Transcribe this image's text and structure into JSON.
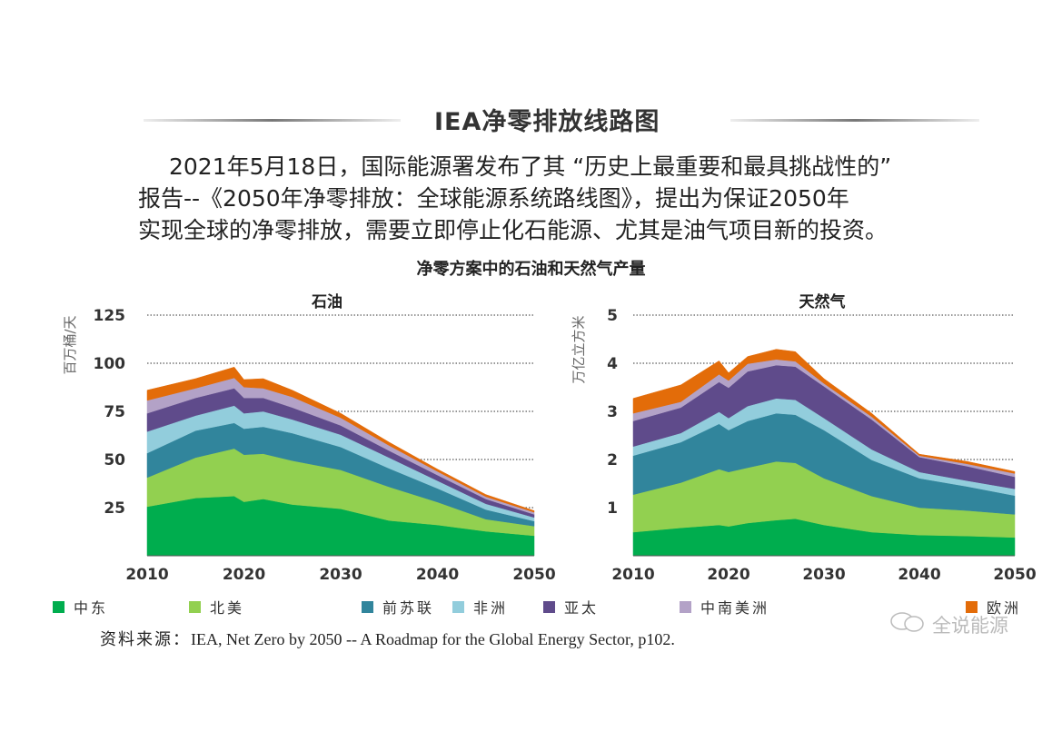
{
  "header": {
    "title": "IEA净零排放线路图"
  },
  "paragraph": {
    "lines": [
      "2021年5月18日，国际能源署发布了其 “历史上最重要和最具挑战性的”",
      "报告--《2050年净零排放：全球能源系统路线图》，提出为保证2050年",
      "实现全球的净零排放，需要立即停止化石能源、尤其是油气项目新的投资。"
    ]
  },
  "figure_title": "净零方案中的石油和天然气产量",
  "legend": [
    {
      "name": "中东",
      "color": "#00ad4e"
    },
    {
      "name": "北美",
      "color": "#92d050"
    },
    {
      "name": "前苏联",
      "color": "#31859c"
    },
    {
      "name": "非洲",
      "color": "#92cddc"
    },
    {
      "name": "亚太",
      "color": "#5f4b8b"
    },
    {
      "name": "中南美洲",
      "color": "#b3a2c7"
    },
    {
      "name": "欧洲",
      "color": "#e36c09"
    }
  ],
  "source": {
    "prefix": "资料来源：",
    "text": "IEA, Net Zero by 2050 -- A Roadmap for the Global Energy Sector, p102."
  },
  "watermark": "全说能源",
  "chart_data": [
    {
      "type": "area",
      "stacked": true,
      "title": "石油",
      "ylabel": "百万桶/天",
      "xlabel": "",
      "ylim": [
        0,
        125
      ],
      "yticks": [
        25,
        50,
        75,
        100,
        125
      ],
      "xlim": [
        2010,
        2050
      ],
      "xticks": [
        2010,
        2020,
        2030,
        2040,
        2050
      ],
      "grid": "horizontal dotted",
      "x": [
        2010,
        2015,
        2019,
        2020,
        2022,
        2025,
        2030,
        2035,
        2040,
        2045,
        2050
      ],
      "series": [
        {
          "name": "中东",
          "values": [
            25.5,
            30,
            31,
            28,
            29.5,
            26.6,
            24.4,
            18.3,
            16,
            12.7,
            10.4
          ]
        },
        {
          "name": "北美",
          "values": [
            15.1,
            21,
            24.7,
            24.5,
            23.5,
            22.8,
            20.2,
            17.5,
            11.9,
            6.3,
            5.0
          ]
        },
        {
          "name": "前苏联",
          "values": [
            12.7,
            14,
            13.3,
            13.5,
            14,
            14.3,
            11.9,
            9.6,
            7.1,
            5,
            2.6
          ]
        },
        {
          "name": "非洲",
          "values": [
            11.2,
            7.8,
            9,
            8,
            8,
            7.1,
            6.4,
            5.6,
            4,
            3,
            1.9
          ]
        },
        {
          "name": "亚太",
          "values": [
            9.5,
            9.2,
            9,
            8,
            7,
            6.2,
            4.8,
            3.6,
            2.9,
            2.5,
            1.6
          ]
        },
        {
          "name": "中南美洲",
          "values": [
            6.7,
            5,
            5.4,
            5.6,
            5,
            5.5,
            4,
            2.7,
            1.9,
            1.2,
            1.1
          ]
        },
        {
          "name": "欧洲",
          "values": [
            5.3,
            5,
            5.6,
            3.9,
            5,
            3.5,
            2.3,
            1.7,
            1.2,
            1.1,
            0.8
          ]
        }
      ]
    },
    {
      "type": "area",
      "stacked": true,
      "title": "天然气",
      "ylabel": "万亿立方米",
      "xlabel": "",
      "ylim": [
        0,
        5
      ],
      "yticks": [
        1,
        2,
        3,
        4,
        5
      ],
      "xlim": [
        2010,
        2050
      ],
      "xticks": [
        2010,
        2020,
        2030,
        2040,
        2050
      ],
      "grid": "horizontal dotted",
      "x": [
        2010,
        2015,
        2019,
        2020,
        2022,
        2025,
        2027,
        2030,
        2035,
        2040,
        2045,
        2050
      ],
      "series": [
        {
          "name": "中东",
          "values": [
            0.49,
            0.58,
            0.64,
            0.61,
            0.68,
            0.74,
            0.77,
            0.64,
            0.49,
            0.43,
            0.41,
            0.38
          ]
        },
        {
          "name": "北美",
          "values": [
            0.78,
            0.94,
            1.16,
            1.13,
            1.15,
            1.22,
            1.16,
            0.97,
            0.75,
            0.57,
            0.53,
            0.48
          ]
        },
        {
          "name": "前苏联",
          "values": [
            0.81,
            0.84,
            0.94,
            0.87,
            0.97,
            1.0,
            1.0,
            1.0,
            0.75,
            0.61,
            0.5,
            0.39
          ]
        },
        {
          "name": "非洲",
          "values": [
            0.19,
            0.19,
            0.25,
            0.25,
            0.31,
            0.31,
            0.31,
            0.25,
            0.22,
            0.13,
            0.12,
            0.14
          ]
        },
        {
          "name": "亚太",
          "values": [
            0.53,
            0.53,
            0.62,
            0.63,
            0.72,
            0.69,
            0.69,
            0.66,
            0.62,
            0.31,
            0.3,
            0.25
          ]
        },
        {
          "name": "中南美洲",
          "values": [
            0.16,
            0.12,
            0.16,
            0.15,
            0.16,
            0.12,
            0.11,
            0.06,
            0.06,
            0.03,
            0.05,
            0.07
          ]
        },
        {
          "name": "欧洲",
          "values": [
            0.31,
            0.35,
            0.28,
            0.16,
            0.15,
            0.21,
            0.2,
            0.1,
            0.07,
            0.03,
            0.05,
            0.04
          ]
        }
      ]
    }
  ]
}
